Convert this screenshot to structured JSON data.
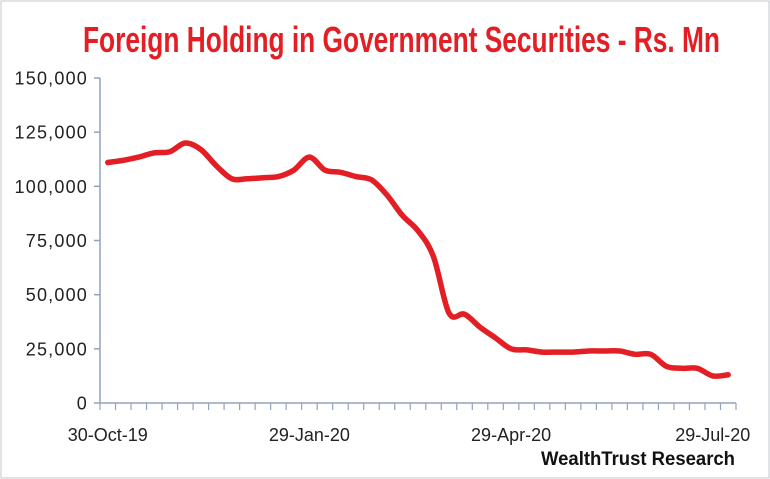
{
  "chart_data": {
    "type": "line",
    "title": "Foreign Holding in Government Securities - Rs. Mn",
    "source": "WealthTrust Research",
    "x": [
      "30-Oct-19",
      "06-Nov-19",
      "13-Nov-19",
      "20-Nov-19",
      "27-Nov-19",
      "04-Dec-19",
      "11-Dec-19",
      "18-Dec-19",
      "25-Dec-19",
      "01-Jan-20",
      "08-Jan-20",
      "15-Jan-20",
      "22-Jan-20",
      "29-Jan-20",
      "05-Feb-20",
      "12-Feb-20",
      "19-Feb-20",
      "26-Feb-20",
      "04-Mar-20",
      "11-Mar-20",
      "18-Mar-20",
      "25-Mar-20",
      "01-Apr-20",
      "08-Apr-20",
      "15-Apr-20",
      "22-Apr-20",
      "29-Apr-20",
      "06-May-20",
      "13-May-20",
      "20-May-20",
      "27-May-20",
      "03-Jun-20",
      "10-Jun-20",
      "17-Jun-20",
      "24-Jun-20",
      "01-Jul-20",
      "08-Jul-20",
      "15-Jul-20",
      "22-Jul-20",
      "29-Jul-20",
      "05-Aug-20"
    ],
    "series": [
      {
        "values": [
          111000,
          112000,
          113500,
          115500,
          116000,
          120000,
          117000,
          109500,
          103500,
          103500,
          104000,
          104500,
          107500,
          113500,
          107500,
          106500,
          104500,
          103000,
          96000,
          86500,
          79500,
          67500,
          41500,
          41000,
          35000,
          30000,
          25000,
          24500,
          23500,
          23500,
          23500,
          24000,
          24000,
          24000,
          22500,
          22500,
          17000,
          16000,
          16000,
          12500,
          13000
        ],
        "color": "#e31e24",
        "smoothed": true
      }
    ],
    "ylim": [
      0,
      150000
    ],
    "yticks": {
      "values": [
        0,
        25000,
        50000,
        75000,
        100000,
        125000,
        150000
      ],
      "labels": [
        "0",
        "25,000",
        "50,000",
        "75,000",
        "100,000",
        "125,000",
        "150,000"
      ]
    },
    "xtick_labels": [
      "30-Oct-19",
      "29-Jan-20",
      "29-Apr-20",
      "29-Jul-20"
    ],
    "grid": false,
    "legend": "none",
    "colors": {
      "title": "#e31e24",
      "axis": "#8fa3bb"
    }
  }
}
